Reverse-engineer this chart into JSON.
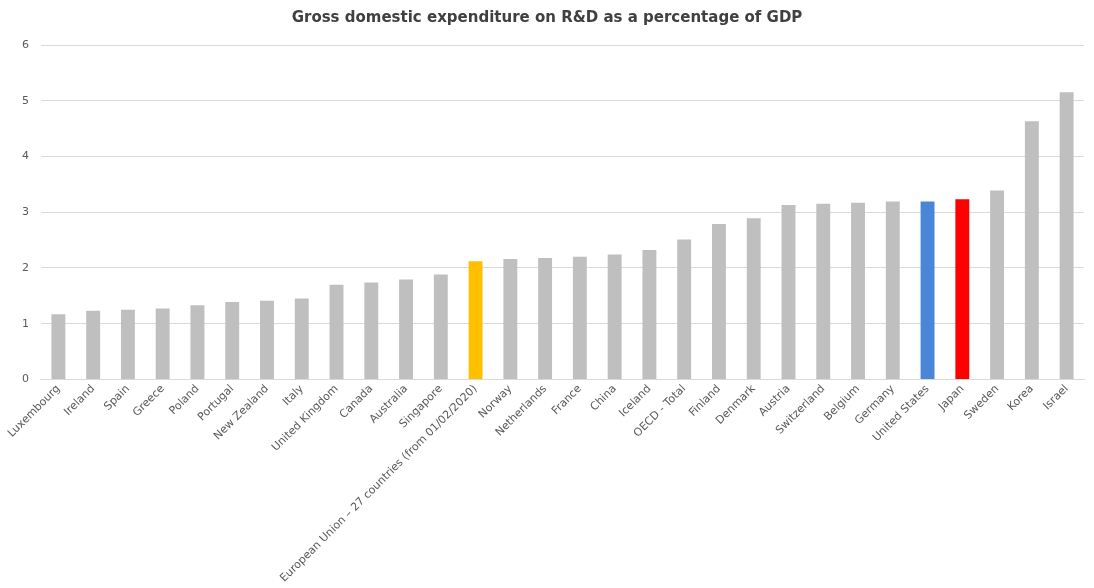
{
  "chart_data": {
    "type": "bar",
    "title": "Gross domestic expenditure on R&D as a percentage of GDP",
    "categories": [
      "Luxembourg",
      "Ireland",
      "Spain",
      "Greece",
      "Poland",
      "Portugal",
      "New Zealand",
      "Italy",
      "United Kingdom",
      "Canada",
      "Australia",
      "Singapore",
      "European Union – 27 countries (from 01/02/2020)",
      "Norway",
      "Netherlands",
      "France",
      "China",
      "Iceland",
      "OECD - Total",
      "Finland",
      "Denmark",
      "Austria",
      "Switzerland",
      "Belgium",
      "Germany",
      "United States",
      "Japan",
      "Sweden",
      "Korea",
      "Israel"
    ],
    "values": [
      1.17,
      1.23,
      1.25,
      1.27,
      1.33,
      1.39,
      1.41,
      1.45,
      1.7,
      1.74,
      1.79,
      1.88,
      2.12,
      2.16,
      2.18,
      2.2,
      2.24,
      2.32,
      2.51,
      2.79,
      2.89,
      3.13,
      3.15,
      3.17,
      3.19,
      3.19,
      3.23,
      3.39,
      4.63,
      5.15
    ],
    "colors": [
      "#bfbfbf",
      "#bfbfbf",
      "#bfbfbf",
      "#bfbfbf",
      "#bfbfbf",
      "#bfbfbf",
      "#bfbfbf",
      "#bfbfbf",
      "#bfbfbf",
      "#bfbfbf",
      "#bfbfbf",
      "#bfbfbf",
      "#ffc000",
      "#bfbfbf",
      "#bfbfbf",
      "#bfbfbf",
      "#bfbfbf",
      "#bfbfbf",
      "#bfbfbf",
      "#bfbfbf",
      "#bfbfbf",
      "#bfbfbf",
      "#bfbfbf",
      "#bfbfbf",
      "#bfbfbf",
      "#4a86d8",
      "#ff0000",
      "#bfbfbf",
      "#bfbfbf",
      "#bfbfbf"
    ],
    "ylim": [
      0,
      6
    ],
    "yticks": [
      0,
      1,
      2,
      3,
      4,
      5,
      6
    ],
    "grid": "y",
    "legend": false
  }
}
